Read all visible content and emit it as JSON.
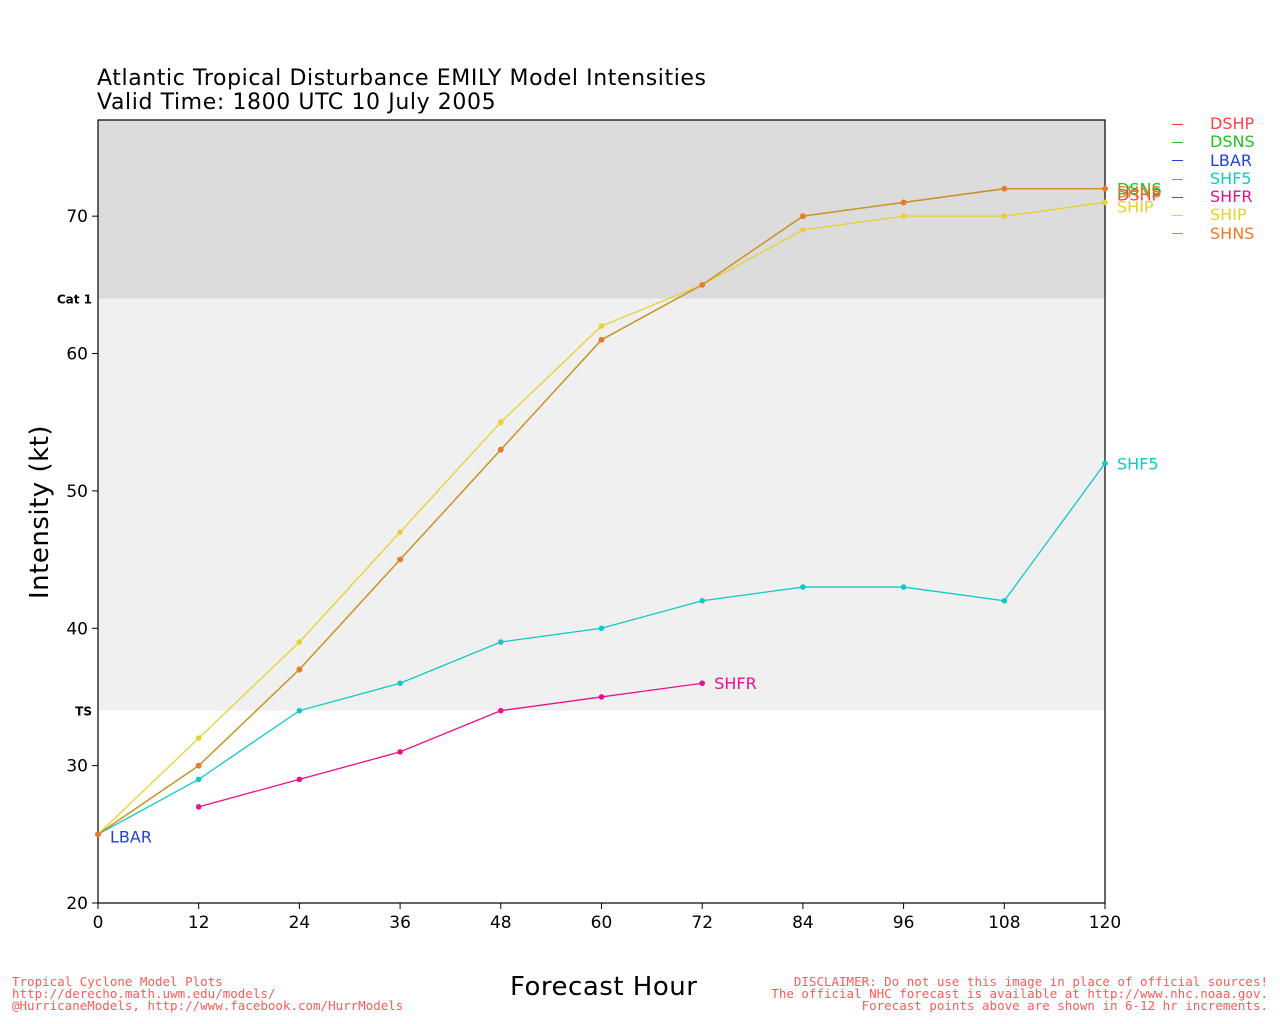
{
  "title": {
    "line1": "Atlantic Tropical Disturbance EMILY Model Intensities",
    "line2": "Valid Time: 1800 UTC 10 July 2005"
  },
  "chart_data": {
    "type": "line",
    "xlabel": "Forecast Hour",
    "ylabel": "Intensity (kt)",
    "xlim": [
      0,
      120
    ],
    "ylim": [
      20,
      77
    ],
    "xticks": [
      0,
      12,
      24,
      36,
      48,
      60,
      72,
      84,
      96,
      108,
      120
    ],
    "yticks": [
      20,
      30,
      40,
      50,
      60,
      70
    ],
    "bands": [
      {
        "label": "TS",
        "from": 34,
        "to": 64,
        "color": "#f0f0f0"
      },
      {
        "label": "Cat 1",
        "from": 64,
        "to": 77,
        "color": "#dcdcdc"
      }
    ],
    "series": [
      {
        "name": "DSHP",
        "color": "#ff4040",
        "x": [
          0,
          12,
          24,
          36,
          48,
          60,
          72,
          84,
          96,
          108,
          120
        ],
        "y": [
          25,
          30,
          37,
          45,
          53,
          61,
          65,
          70,
          71,
          72,
          72
        ],
        "end_label": "DSHP"
      },
      {
        "name": "DSNS",
        "color": "#20c020",
        "x": [
          0,
          12,
          24,
          36,
          48,
          60,
          72,
          84,
          96,
          108,
          120
        ],
        "y": [
          25,
          30,
          37,
          45,
          53,
          61,
          65,
          70,
          71,
          72,
          72
        ],
        "end_label": "DSNS"
      },
      {
        "name": "LBAR",
        "color": "#2040e0",
        "x": [
          0
        ],
        "y": [
          25
        ],
        "end_label": "LBAR"
      },
      {
        "name": "SHF5",
        "color": "#10c8c8",
        "x": [
          0,
          12,
          24,
          36,
          48,
          60,
          72,
          84,
          96,
          108,
          120
        ],
        "y": [
          25,
          29,
          34,
          36,
          39,
          40,
          42,
          43,
          43,
          42,
          52
        ],
        "end_label": "SHF5"
      },
      {
        "name": "SHFR",
        "color": "#e8108c",
        "x": [
          12,
          24,
          36,
          48,
          60,
          72
        ],
        "y": [
          27,
          29,
          31,
          34,
          35,
          36
        ],
        "end_label": "SHFR"
      },
      {
        "name": "SHIP",
        "color": "#e8d030",
        "x": [
          0,
          12,
          24,
          36,
          48,
          60,
          72,
          84,
          96,
          108,
          120
        ],
        "y": [
          25,
          32,
          39,
          47,
          55,
          62,
          65,
          69,
          70,
          70,
          71
        ],
        "end_label": "SHIP"
      },
      {
        "name": "SHNS",
        "color": "#f07828",
        "x": [
          0,
          12,
          24,
          36,
          48,
          60,
          72,
          84,
          96,
          108,
          120
        ],
        "y": [
          25,
          30,
          37,
          45,
          53,
          61,
          65,
          70,
          71,
          72,
          72
        ],
        "end_label": "SHNS"
      }
    ]
  },
  "footer": {
    "left": [
      "Tropical Cyclone Model Plots",
      "http://derecho.math.uwm.edu/models/",
      "@HurricaneModels, http://www.facebook.com/HurrModels"
    ],
    "right": [
      "DISCLAIMER: Do not use this image in place of official sources!",
      "The official NHC forecast is available at http://www.nhc.noaa.gov.",
      "Forecast points above are shown in 6-12 hr increments."
    ]
  }
}
